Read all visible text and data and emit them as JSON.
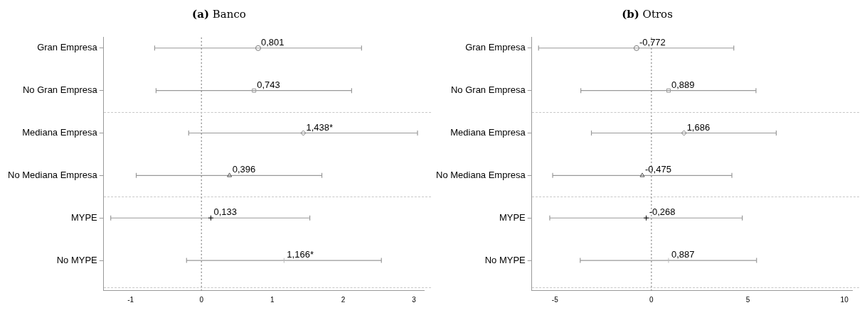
{
  "chart_data": [
    {
      "type": "scatter",
      "title": "(a) Banco",
      "orientation": "horizontal",
      "categories": [
        "Gran Empresa",
        "No Gran Empresa",
        "Mediana Empresa",
        "No Mediana Empresa",
        "MYPE",
        "No MYPE"
      ],
      "series": [
        {
          "color": "#777777",
          "marker": "circle",
          "values": [
            0.801,
            null,
            null,
            null,
            null,
            null
          ],
          "errors": [
            [
              -0.66,
              2.26
            ],
            null,
            null,
            null,
            null,
            null
          ],
          "value_labels": [
            "0,801",
            null,
            null,
            null,
            null,
            null
          ]
        },
        {
          "color": "#999999",
          "marker": "square",
          "values": [
            null,
            0.743,
            null,
            null,
            null,
            null
          ],
          "errors": [
            null,
            [
              -0.64,
              2.12
            ],
            null,
            null,
            null,
            null
          ],
          "value_labels": [
            null,
            "0,743",
            null,
            null,
            null,
            null
          ]
        },
        {
          "color": "#777777",
          "marker": "diamond",
          "values": [
            null,
            null,
            1.438,
            null,
            null,
            null
          ],
          "errors": [
            null,
            null,
            [
              -0.18,
              3.05
            ],
            null,
            null,
            null
          ],
          "value_labels": [
            null,
            null,
            "1,438*",
            null,
            null,
            null
          ]
        },
        {
          "color": "#555555",
          "marker": "triangle",
          "values": [
            null,
            null,
            null,
            0.396,
            null,
            null
          ],
          "errors": [
            null,
            null,
            null,
            [
              -0.92,
              1.7
            ],
            null,
            null
          ],
          "value_labels": [
            null,
            null,
            null,
            "0,396",
            null,
            null
          ]
        },
        {
          "color": "#000000",
          "marker": "cross",
          "values": [
            null,
            null,
            null,
            null,
            0.133,
            null
          ],
          "errors": [
            null,
            null,
            null,
            null,
            [
              -1.28,
              1.53
            ],
            null
          ],
          "value_labels": [
            null,
            null,
            null,
            null,
            "0,133",
            null
          ]
        },
        {
          "color": "#bbbbbb",
          "marker": "cross",
          "values": [
            null,
            null,
            null,
            null,
            null,
            1.166
          ],
          "errors": [
            null,
            null,
            null,
            null,
            null,
            [
              -0.21,
              2.54
            ]
          ],
          "value_labels": [
            null,
            null,
            null,
            null,
            null,
            "1,166*"
          ]
        }
      ],
      "xlim": [
        -1.38,
        3.14
      ],
      "xticks": [
        -1,
        0,
        1,
        2,
        3
      ],
      "ref_lines": [
        {
          "axis": "x",
          "value": 0,
          "line_style": "dotted",
          "color": "#666666"
        }
      ],
      "grid": false,
      "legend": false
    },
    {
      "type": "scatter",
      "title": "(b) Otros",
      "orientation": "horizontal",
      "categories": [
        "Gran Empresa",
        "No Gran Empresa",
        "Mediana Empresa",
        "No Mediana Empresa",
        "MYPE",
        "No MYPE"
      ],
      "series": [
        {
          "color": "#777777",
          "marker": "circle",
          "values": [
            -0.772,
            null,
            null,
            null,
            null,
            null
          ],
          "errors": [
            [
              -5.85,
              4.27
            ],
            null,
            null,
            null,
            null,
            null
          ],
          "value_labels": [
            "-0,772",
            null,
            null,
            null,
            null,
            null
          ]
        },
        {
          "color": "#999999",
          "marker": "square",
          "values": [
            null,
            0.889,
            null,
            null,
            null,
            null
          ],
          "errors": [
            null,
            [
              -3.66,
              5.42
            ],
            null,
            null,
            null,
            null
          ],
          "value_labels": [
            null,
            "0,889",
            null,
            null,
            null,
            null
          ]
        },
        {
          "color": "#777777",
          "marker": "diamond",
          "values": [
            null,
            null,
            1.686,
            null,
            null,
            null
          ],
          "errors": [
            null,
            null,
            [
              -3.11,
              6.47
            ],
            null,
            null,
            null
          ],
          "value_labels": [
            null,
            null,
            "1,686",
            null,
            null,
            null
          ]
        },
        {
          "color": "#555555",
          "marker": "triangle",
          "values": [
            null,
            null,
            null,
            -0.475,
            null,
            null
          ],
          "errors": [
            null,
            null,
            null,
            [
              -5.12,
              4.17
            ],
            null,
            null
          ],
          "value_labels": [
            null,
            null,
            null,
            "-0,475",
            null,
            null
          ]
        },
        {
          "color": "#000000",
          "marker": "cross",
          "values": [
            null,
            null,
            null,
            null,
            -0.268,
            null
          ],
          "errors": [
            null,
            null,
            null,
            null,
            [
              -5.27,
              4.71
            ],
            null
          ],
          "value_labels": [
            null,
            null,
            null,
            null,
            "-0,268",
            null
          ]
        },
        {
          "color": "#bbbbbb",
          "marker": "cross",
          "values": [
            null,
            null,
            null,
            null,
            null,
            0.887
          ],
          "errors": [
            null,
            null,
            null,
            null,
            null,
            [
              -3.69,
              5.45
            ]
          ],
          "value_labels": [
            null,
            null,
            null,
            null,
            null,
            "0,887"
          ]
        }
      ],
      "xlim": [
        -6.2,
        10.4
      ],
      "xticks": [
        -5,
        0,
        5,
        10
      ],
      "ref_lines": [
        {
          "axis": "x",
          "value": 0,
          "line_style": "dotted",
          "color": "#666666"
        }
      ],
      "grid": false,
      "legend": false
    }
  ]
}
